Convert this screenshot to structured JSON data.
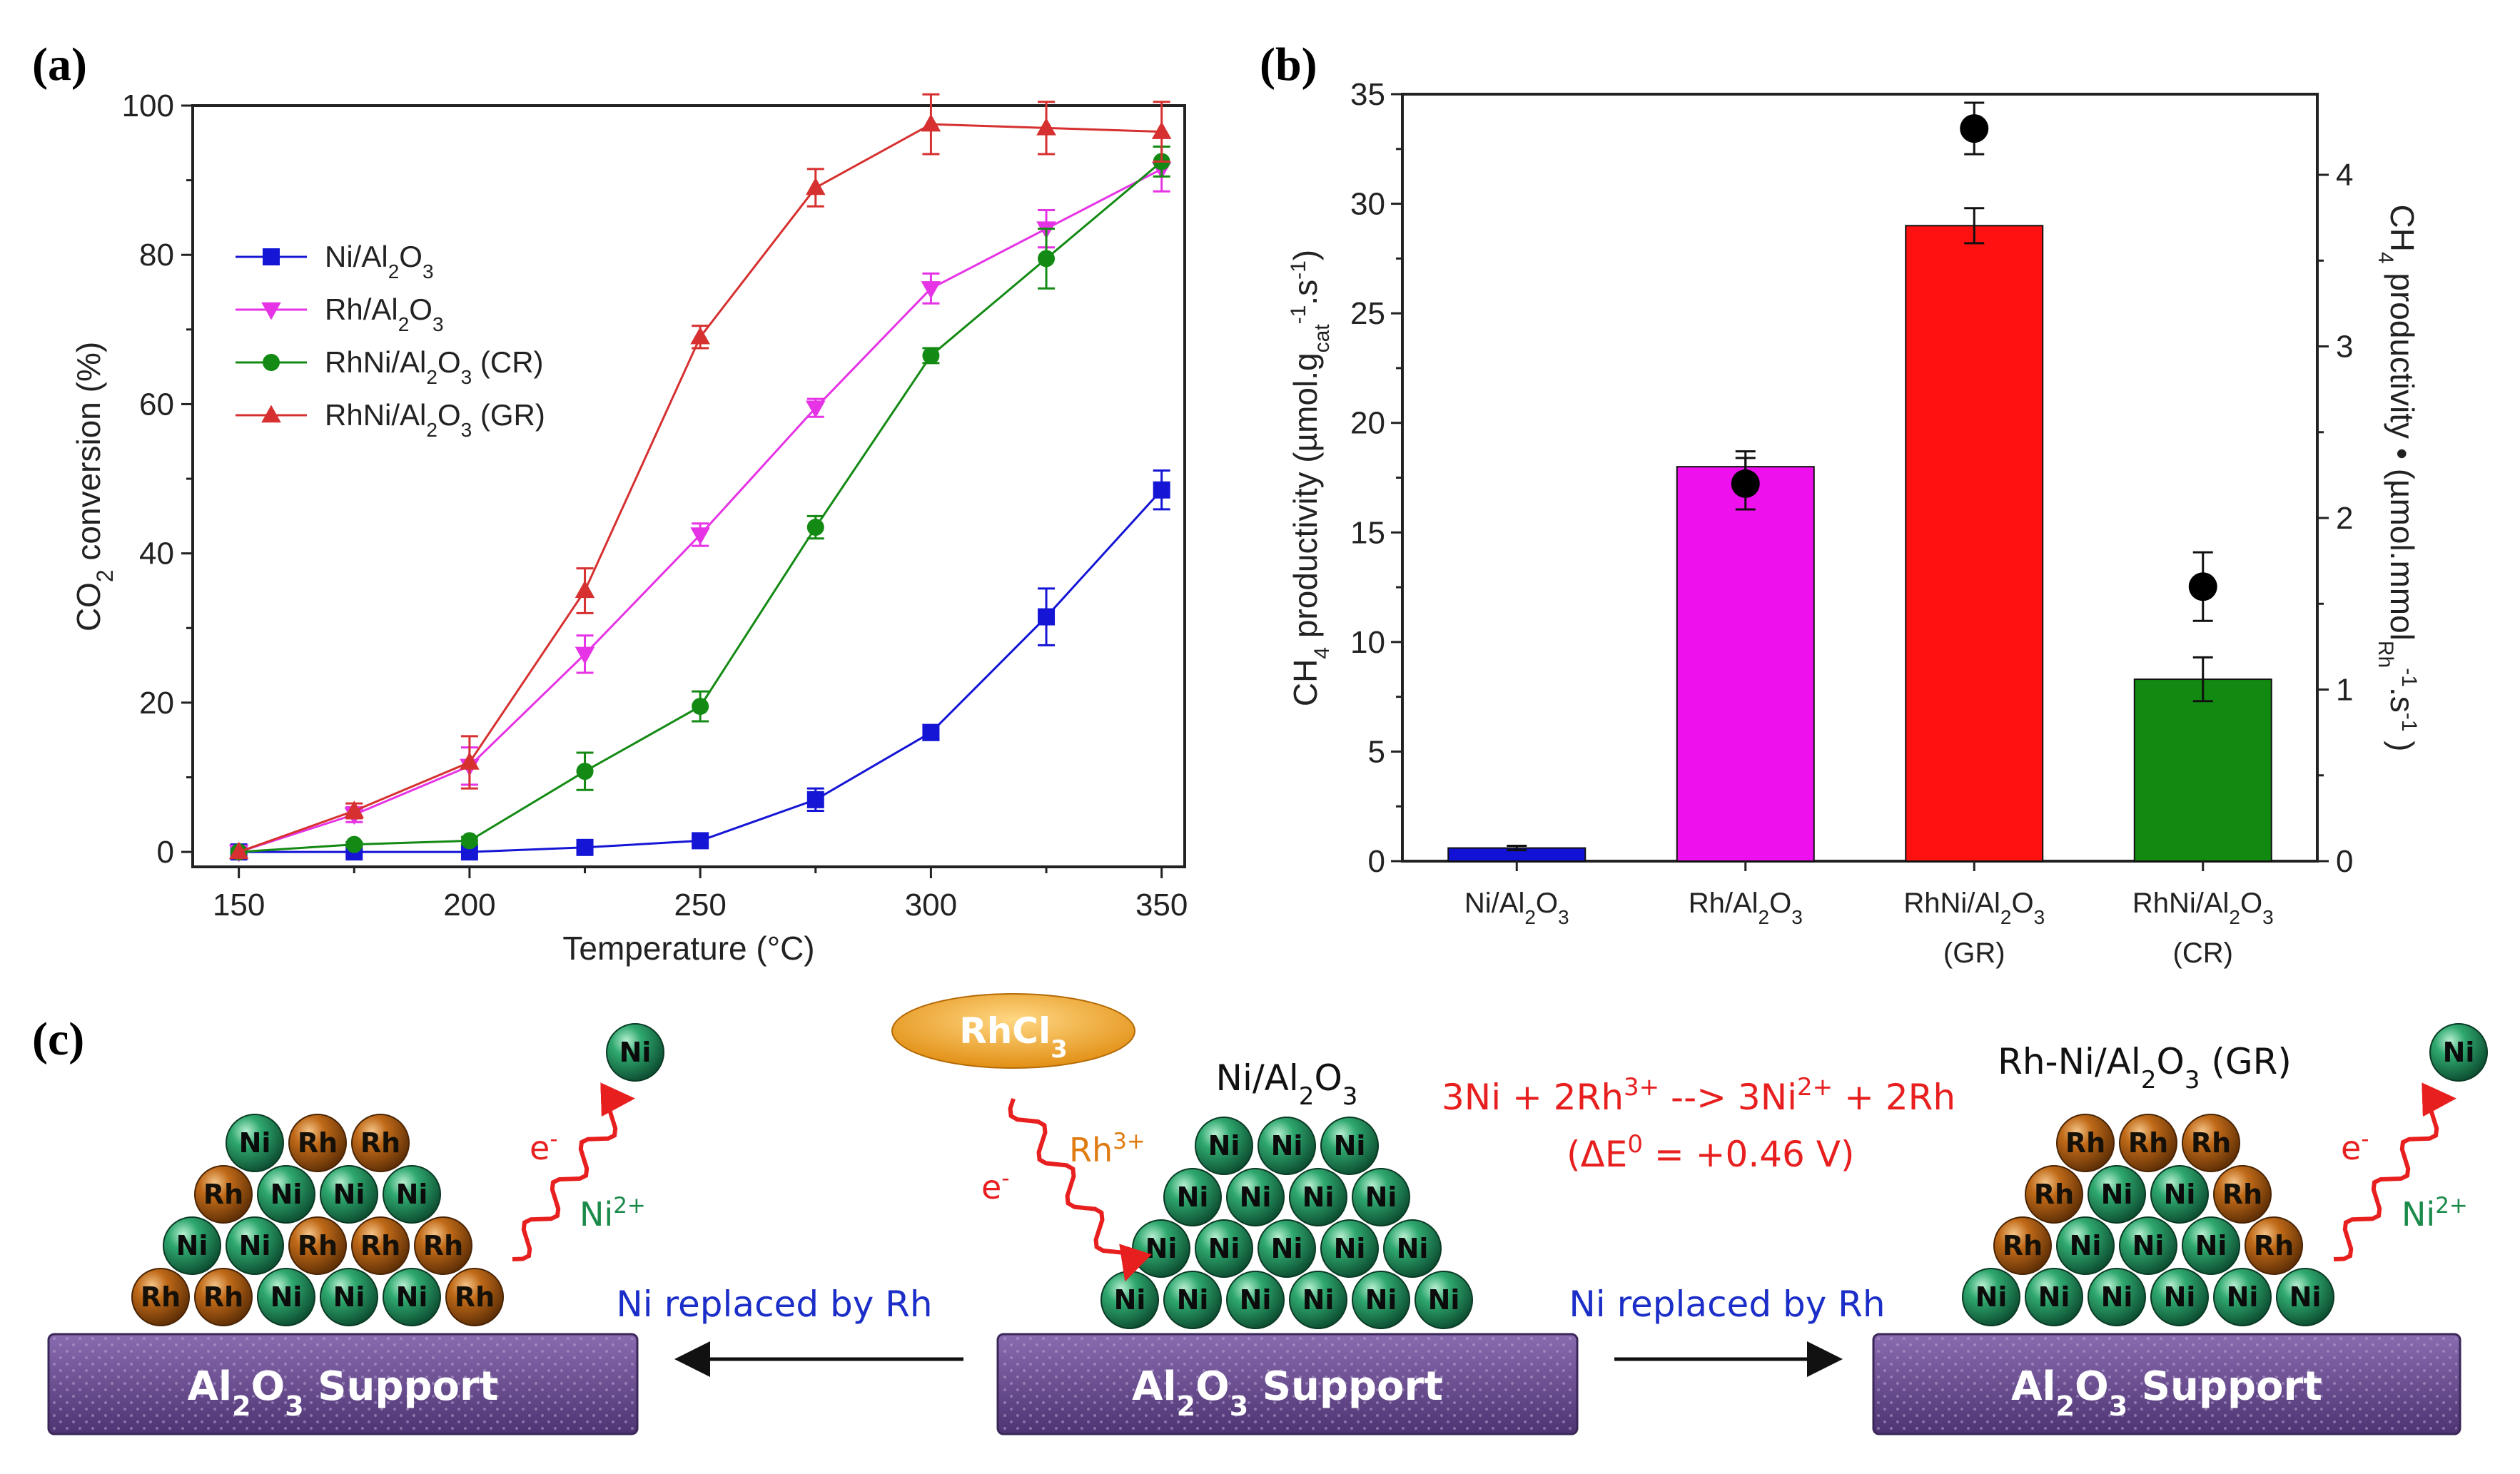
{
  "panels": {
    "a": "(a)",
    "b": "(b)",
    "c": "(c)"
  },
  "chart_data": [
    {
      "panel": "(a)",
      "type": "line",
      "xlabel": "Temperature (°C)",
      "ylabel": "CO2 conversion (%)",
      "ylabel_parts": [
        "CO",
        "2",
        " conversion (%)"
      ],
      "xlim": [
        140,
        355
      ],
      "ylim": [
        -2,
        100
      ],
      "xticks": [
        150,
        200,
        250,
        300,
        350
      ],
      "yticks": [
        0,
        20,
        40,
        60,
        80,
        100
      ],
      "legend_position": "upper-left",
      "x": [
        150,
        175,
        200,
        225,
        250,
        275,
        300,
        325,
        350
      ],
      "series": [
        {
          "name": "Ni/Al2O3",
          "name_parts": [
            "Ni/Al",
            "2",
            "O",
            "3",
            ""
          ],
          "color": "#1515d6",
          "marker": "square",
          "values": [
            0,
            0,
            0,
            0.6,
            1.5,
            7,
            16,
            31.5,
            48.5
          ],
          "errors": [
            0,
            0,
            0,
            0.3,
            0.5,
            1.5,
            1,
            3.8,
            2.6
          ]
        },
        {
          "name": "Rh/Al2O3",
          "name_parts": [
            "Rh/Al",
            "2",
            "O",
            "3",
            ""
          ],
          "color": "#e533e5",
          "marker": "triangle-down",
          "values": [
            0,
            5,
            11.5,
            26.5,
            42.5,
            59.5,
            75.5,
            83.5,
            91.5
          ],
          "errors": [
            0,
            1,
            2.5,
            2.5,
            1.5,
            1.2,
            2,
            2.5,
            3
          ]
        },
        {
          "name": "RhNi/Al2O3 (CR)",
          "name_parts": [
            "RhNi/Al",
            "2",
            "O",
            "3",
            " (CR)"
          ],
          "color": "#138a13",
          "marker": "circle",
          "values": [
            0,
            1,
            1.5,
            10.8,
            19.5,
            43.5,
            66.5,
            79.5,
            92.5
          ],
          "errors": [
            0,
            0.3,
            0.5,
            2.5,
            2,
            1.5,
            1,
            4,
            2
          ]
        },
        {
          "name": "RhNi/Al2O3 (GR)",
          "name_parts": [
            "RhNi/Al",
            "2",
            "O",
            "3",
            " (GR)"
          ],
          "color": "#d63030",
          "marker": "triangle-up",
          "values": [
            0,
            5.5,
            12,
            35,
            69,
            89,
            97.5,
            97,
            96.5
          ],
          "errors": [
            0,
            1,
            3.5,
            3,
            1.5,
            2.5,
            4,
            3.5,
            4
          ]
        }
      ]
    },
    {
      "panel": "(b)",
      "type": "bar",
      "ylabel_left": "CH4 productivity (µmol.gcat-1.s-1)",
      "ylabel_left_parts": [
        "CH",
        "4",
        " productivity (µmol.g",
        "cat",
        "-1",
        ".s",
        "-1",
        ")"
      ],
      "ylabel_right": "CH4 productivity • (µmol.mmolRh-1.s-1)",
      "ylabel_right_parts": [
        "CH",
        "4",
        " productivity • (µmol.mmol",
        "Rh",
        "-1",
        ".s",
        "-1",
        " )"
      ],
      "ylim_left": [
        0,
        35
      ],
      "ylim_right": [
        0,
        4.47
      ],
      "yticks_left": [
        0,
        5,
        10,
        15,
        20,
        25,
        30,
        35
      ],
      "yticks_right": [
        0,
        1,
        2,
        3,
        4
      ],
      "categories": [
        "Ni/Al2O3",
        "Rh/Al2O3",
        "RhNi/Al2O3 (GR)",
        "RhNi/Al2O3 (CR)"
      ],
      "category_parts": [
        [
          "Ni/Al",
          "2",
          "O",
          "3",
          ""
        ],
        [
          "Rh/Al",
          "2",
          "O",
          "3",
          ""
        ],
        [
          "RhNi/Al",
          "2",
          "O",
          "3",
          "(GR)"
        ],
        [
          "RhNi/Al",
          "2",
          "O",
          "3",
          "(CR)"
        ]
      ],
      "bar_colors": [
        "#1212d6",
        "#ee11ee",
        "#ff1111",
        "#128a12"
      ],
      "bar_values": [
        0.6,
        18,
        29,
        8.3
      ],
      "bar_errors": [
        0.1,
        0.7,
        0.8,
        1
      ],
      "dot_values_right": [
        null,
        2.2,
        4.27,
        1.6
      ],
      "dot_errors_right": [
        null,
        0.15,
        0.15,
        0.2
      ]
    }
  ],
  "diagram": {
    "precursor": "RhCl3",
    "precursor_parts": [
      "RhCl",
      "3"
    ],
    "center_title_parts": [
      "Ni/Al",
      "2",
      "O",
      "3"
    ],
    "right_title_parts": [
      "Rh-Ni/Al",
      "2",
      "O",
      "3",
      " (GR)"
    ],
    "reaction_parts": [
      "3Ni + 2Rh",
      "3+",
      " --> 3Ni",
      "2+",
      " + 2Rh"
    ],
    "potential_parts": [
      "(ΔE",
      "0",
      " = +0.46 V)"
    ],
    "support_parts": [
      "Al",
      "2",
      "O",
      "3",
      " Support"
    ],
    "replace_label": "Ni replaced by Rh",
    "electron_parts": [
      "e",
      "-"
    ],
    "rh_ion_parts": [
      "Rh",
      "3+"
    ],
    "ni_ion_parts": [
      "Ni",
      "2+"
    ],
    "ni_label": "Ni",
    "rh_label": "Rh",
    "left_rows": [
      [
        "Ni",
        "Rh",
        "Rh"
      ],
      [
        "Rh",
        "Ni",
        "Ni",
        "Ni"
      ],
      [
        "Ni",
        "Ni",
        "Rh",
        "Rh",
        "Rh"
      ],
      [
        "Rh",
        "Rh",
        "Ni",
        "Ni",
        "Ni",
        "Rh"
      ]
    ],
    "center_rows": [
      [
        "Ni",
        "Ni",
        "Ni"
      ],
      [
        "Ni",
        "Ni",
        "Ni",
        "Ni"
      ],
      [
        "Ni",
        "Ni",
        "Ni",
        "Ni",
        "Ni"
      ],
      [
        "Ni",
        "Ni",
        "Ni",
        "Ni",
        "Ni",
        "Ni"
      ]
    ],
    "right_rows": [
      [
        "Rh",
        "Rh",
        "Rh"
      ],
      [
        "Rh",
        "Ni",
        "Ni",
        "Rh"
      ],
      [
        "Rh",
        "Ni",
        "Ni",
        "Ni",
        "Rh"
      ],
      [
        "Ni",
        "Ni",
        "Ni",
        "Ni",
        "Ni",
        "Ni"
      ]
    ],
    "colors": {
      "ni": "#1f8a5c",
      "rh": "#a85a12",
      "support": "#6b4c92",
      "precursor": "#f0a019",
      "red_text": "#e81f1f",
      "blue_text": "#1b2ec8",
      "green_text": "#1b8a4a",
      "orange_text": "#e07b10"
    }
  }
}
